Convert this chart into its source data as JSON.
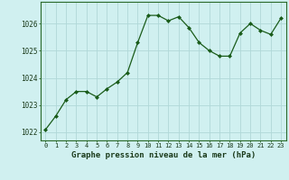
{
  "x": [
    0,
    1,
    2,
    3,
    4,
    5,
    6,
    7,
    8,
    9,
    10,
    11,
    12,
    13,
    14,
    15,
    16,
    17,
    18,
    19,
    20,
    21,
    22,
    23
  ],
  "y": [
    1022.1,
    1022.6,
    1023.2,
    1023.5,
    1023.5,
    1023.3,
    1023.6,
    1023.85,
    1024.2,
    1025.3,
    1026.3,
    1026.3,
    1026.1,
    1026.25,
    1025.85,
    1025.3,
    1025.0,
    1024.8,
    1024.8,
    1025.65,
    1026.0,
    1025.75,
    1025.6,
    1026.2
  ],
  "line_color": "#1a5c1a",
  "marker_color": "#1a5c1a",
  "bg_color": "#d0f0f0",
  "grid_color": "#b0d8d8",
  "title": "Graphe pression niveau de la mer (hPa)",
  "ylabel_ticks": [
    1022,
    1023,
    1024,
    1025,
    1026
  ],
  "ylim": [
    1021.7,
    1026.8
  ],
  "xlim": [
    -0.5,
    23.5
  ],
  "xticks": [
    0,
    1,
    2,
    3,
    4,
    5,
    6,
    7,
    8,
    9,
    10,
    11,
    12,
    13,
    14,
    15,
    16,
    17,
    18,
    19,
    20,
    21,
    22,
    23
  ],
  "xtick_labels": [
    "0",
    "1",
    "2",
    "3",
    "4",
    "5",
    "6",
    "7",
    "8",
    "9",
    "10",
    "11",
    "12",
    "13",
    "14",
    "15",
    "16",
    "17",
    "18",
    "19",
    "20",
    "21",
    "22",
    "23"
  ]
}
